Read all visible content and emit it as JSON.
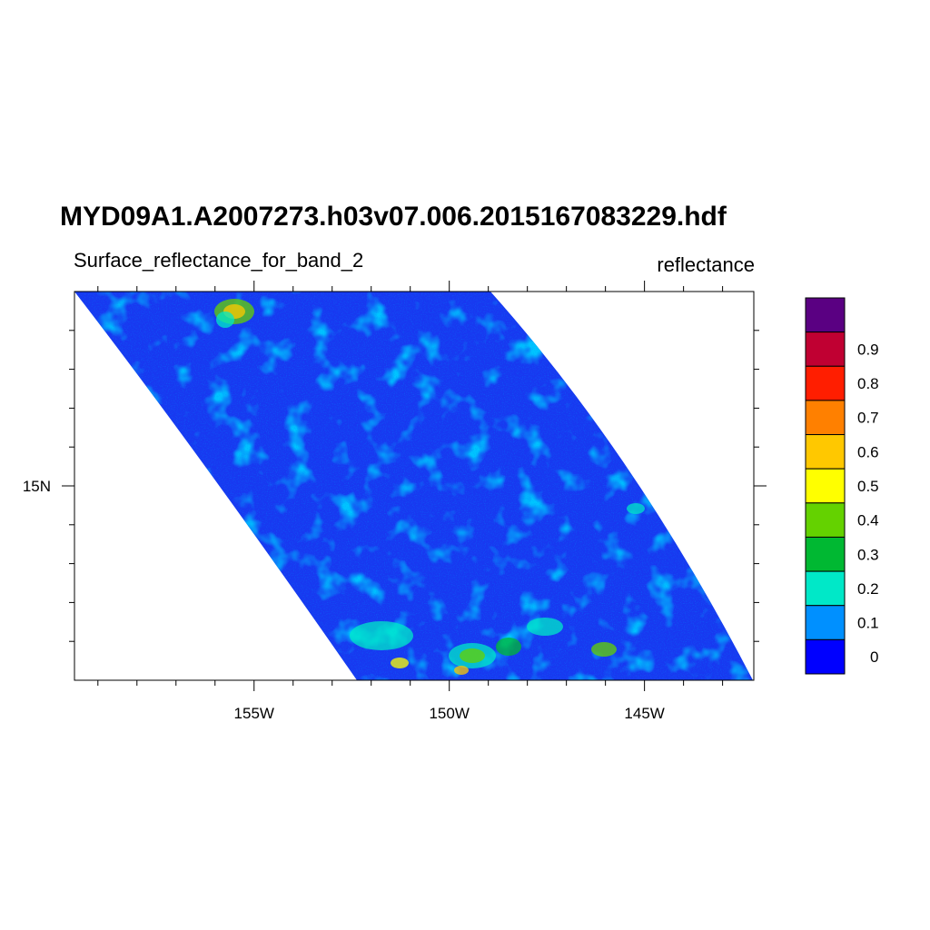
{
  "title": "MYD09A1.A2007273.h03v07.006.2015167083229.hdf",
  "subtitle": "Surface_reflectance_for_band_2",
  "units_label": "reflectance",
  "map": {
    "lon_ticks": [
      {
        "value": -155,
        "label": "155W"
      },
      {
        "value": -150,
        "label": "150W"
      },
      {
        "value": -145,
        "label": "145W"
      }
    ],
    "lat_ticks": [
      {
        "value": 15,
        "label": "15N"
      }
    ],
    "lon_range": [
      -159.6,
      -142.2
    ],
    "lat_range": [
      10,
      20
    ]
  },
  "colorbar": {
    "colors": [
      "#0000ff",
      "#0090ff",
      "#00e8c8",
      "#00b832",
      "#64d200",
      "#ffff00",
      "#ffc800",
      "#ff8000",
      "#ff1e00",
      "#c00032",
      "#5a0082"
    ],
    "labels": [
      "0",
      "0.1",
      "0.2",
      "0.3",
      "0.4",
      "0.5",
      "0.6",
      "0.7",
      "0.8",
      "0.9"
    ]
  }
}
